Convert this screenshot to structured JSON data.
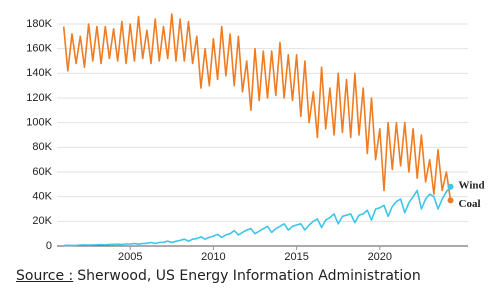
{
  "chart_data": {
    "type": "line",
    "x": [
      2001,
      2001.25,
      2001.5,
      2001.75,
      2002,
      2002.25,
      2002.5,
      2002.75,
      2003,
      2003.25,
      2003.5,
      2003.75,
      2004,
      2004.25,
      2004.5,
      2004.75,
      2005,
      2005.25,
      2005.5,
      2005.75,
      2006,
      2006.25,
      2006.5,
      2006.75,
      2007,
      2007.25,
      2007.5,
      2007.75,
      2008,
      2008.25,
      2008.5,
      2008.75,
      2009,
      2009.25,
      2009.5,
      2009.75,
      2010,
      2010.25,
      2010.5,
      2010.75,
      2011,
      2011.25,
      2011.5,
      2011.75,
      2012,
      2012.25,
      2012.5,
      2012.75,
      2013,
      2013.25,
      2013.5,
      2013.75,
      2014,
      2014.25,
      2014.5,
      2014.75,
      2015,
      2015.25,
      2015.5,
      2015.75,
      2016,
      2016.25,
      2016.5,
      2016.75,
      2017,
      2017.25,
      2017.5,
      2017.75,
      2018,
      2018.25,
      2018.5,
      2018.75,
      2019,
      2019.25,
      2019.5,
      2019.75,
      2020,
      2020.25,
      2020.5,
      2020.75,
      2021,
      2021.25,
      2021.5,
      2021.75,
      2022,
      2022.25,
      2022.5,
      2022.75,
      2023,
      2023.25,
      2023.5,
      2023.75,
      2024,
      2024.25
    ],
    "series": [
      {
        "name": "Coal",
        "color": "#f07c22",
        "values": [
          178000,
          142000,
          172000,
          148000,
          170000,
          145000,
          180000,
          150000,
          178000,
          148000,
          178000,
          152000,
          176000,
          150000,
          182000,
          148000,
          180000,
          150000,
          186000,
          152000,
          175000,
          148000,
          184000,
          150000,
          178000,
          152000,
          188000,
          150000,
          184000,
          150000,
          182000,
          148000,
          170000,
          128000,
          160000,
          130000,
          168000,
          135000,
          178000,
          138000,
          172000,
          130000,
          170000,
          125000,
          150000,
          110000,
          160000,
          118000,
          158000,
          120000,
          158000,
          122000,
          165000,
          120000,
          155000,
          118000,
          155000,
          105000,
          150000,
          100000,
          125000,
          88000,
          145000,
          95000,
          128000,
          90000,
          140000,
          92000,
          135000,
          88000,
          140000,
          90000,
          128000,
          75000,
          120000,
          70000,
          95000,
          45000,
          100000,
          62000,
          100000,
          65000,
          100000,
          60000,
          95000,
          55000,
          90000,
          52000,
          70000,
          42000,
          78000,
          45000,
          60000,
          37000
        ]
      },
      {
        "name": "Wind",
        "color": "#3ec6ea",
        "values": [
          500,
          600,
          500,
          600,
          800,
          900,
          700,
          900,
          1000,
          1200,
          900,
          1300,
          1300,
          1500,
          1200,
          1600,
          1600,
          2000,
          1500,
          2000,
          2200,
          2800,
          2000,
          2800,
          3000,
          4000,
          2800,
          3800,
          4500,
          5500,
          4000,
          5500,
          6000,
          7500,
          5500,
          7000,
          8000,
          9500,
          7000,
          9000,
          10000,
          12500,
          9000,
          11000,
          13000,
          14000,
          10000,
          12000,
          14000,
          16000,
          11000,
          14000,
          16000,
          18000,
          13000,
          16000,
          17000,
          18000,
          13000,
          17000,
          20000,
          22000,
          15000,
          21000,
          23000,
          26000,
          18000,
          24000,
          25000,
          26000,
          19000,
          25000,
          26000,
          29000,
          21000,
          30000,
          31000,
          33000,
          24000,
          32000,
          36000,
          38000,
          27000,
          35000,
          40000,
          45000,
          30000,
          38000,
          42000,
          40000,
          30000,
          38000,
          44000,
          48000
        ]
      }
    ],
    "xlim": [
      2000.6,
      2025.3
    ],
    "xticks": [
      2005,
      2010,
      2015,
      2020
    ],
    "ylim": [
      0,
      180000
    ],
    "yticks": [
      0,
      {
        "value": 20000,
        "label": "20K"
      },
      {
        "value": 40000,
        "label": "40K"
      },
      {
        "value": 60000,
        "label": "60K"
      },
      {
        "value": 80000,
        "label": "80K"
      },
      {
        "value": 100000,
        "label": "100K"
      },
      {
        "value": 120000,
        "label": "120K"
      },
      {
        "value": 140000,
        "label": "140K"
      },
      {
        "value": 160000,
        "label": "160K"
      },
      {
        "value": 180000,
        "label": "180K"
      }
    ],
    "grid": true,
    "source_label": "Source :",
    "source": "Sherwood, US Energy Information Administration"
  }
}
